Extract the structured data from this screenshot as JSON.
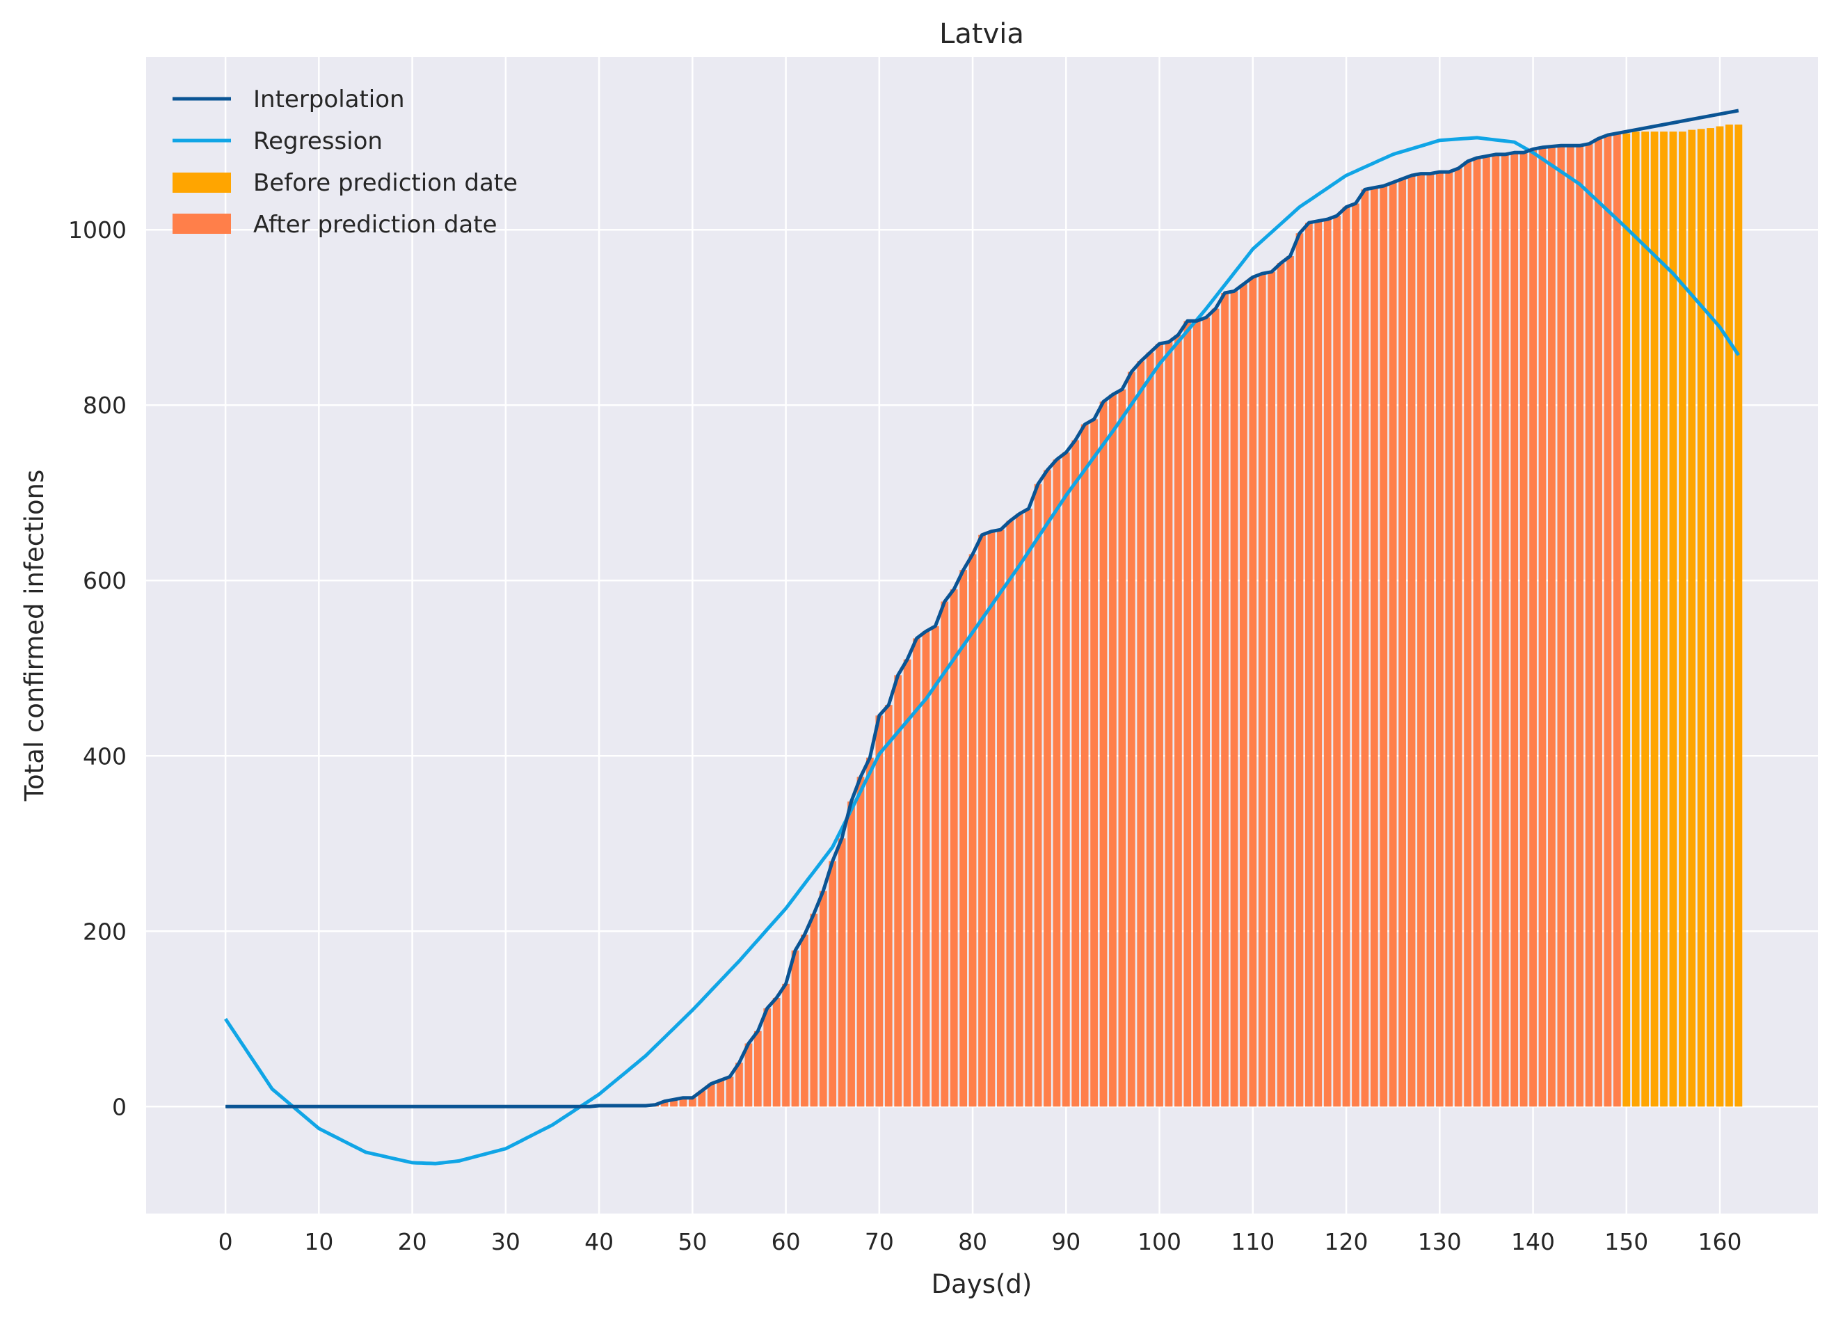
{
  "chart_data": {
    "type": "bar",
    "title": "Latvia",
    "xlabel": "Days(d)",
    "ylabel": "Total confirmed infections",
    "xlim": [
      -8.5,
      170.5
    ],
    "ylim": [
      -122,
      1197
    ],
    "xticks": [
      0,
      10,
      20,
      30,
      40,
      50,
      60,
      70,
      80,
      90,
      100,
      110,
      120,
      130,
      140,
      150,
      160
    ],
    "yticks": [
      0,
      200,
      400,
      600,
      800,
      1000
    ],
    "grid": true,
    "legend_position": "top-left",
    "colors": {
      "background": "#eaeaf2",
      "grid": "#ffffff",
      "interpolation": "#0a5494",
      "regression": "#10a5e6",
      "bar_before": "#ffa500",
      "bar_after": "#ff7f4a"
    },
    "prediction_day": 150,
    "series": [
      {
        "name": "Interpolation",
        "kind": "line",
        "points": [
          [
            0,
            0
          ],
          [
            5,
            0
          ],
          [
            10,
            0
          ],
          [
            20,
            0
          ],
          [
            30,
            0
          ],
          [
            39,
            0
          ],
          [
            40,
            1
          ],
          [
            45,
            1
          ],
          [
            46,
            2
          ],
          [
            47,
            6
          ],
          [
            48,
            8
          ],
          [
            49,
            10
          ],
          [
            50,
            10
          ],
          [
            51,
            18
          ],
          [
            52,
            26
          ],
          [
            53,
            30
          ],
          [
            54,
            34
          ],
          [
            55,
            50
          ],
          [
            56,
            72
          ],
          [
            57,
            86
          ],
          [
            58,
            112
          ],
          [
            59,
            124
          ],
          [
            60,
            140
          ],
          [
            61,
            178
          ],
          [
            62,
            196
          ],
          [
            63,
            220
          ],
          [
            64,
            246
          ],
          [
            65,
            280
          ],
          [
            66,
            306
          ],
          [
            67,
            348
          ],
          [
            68,
            376
          ],
          [
            69,
            398
          ],
          [
            70,
            446
          ],
          [
            71,
            458
          ],
          [
            72,
            492
          ],
          [
            73,
            510
          ],
          [
            74,
            534
          ],
          [
            75,
            542
          ],
          [
            76,
            548
          ],
          [
            77,
            576
          ],
          [
            78,
            590
          ],
          [
            79,
            612
          ],
          [
            80,
            630
          ],
          [
            81,
            652
          ],
          [
            82,
            656
          ],
          [
            83,
            658
          ],
          [
            84,
            668
          ],
          [
            85,
            676
          ],
          [
            86,
            682
          ],
          [
            87,
            710
          ],
          [
            88,
            726
          ],
          [
            89,
            738
          ],
          [
            90,
            746
          ],
          [
            91,
            760
          ],
          [
            92,
            778
          ],
          [
            93,
            784
          ],
          [
            94,
            804
          ],
          [
            95,
            812
          ],
          [
            96,
            818
          ],
          [
            97,
            838
          ],
          [
            98,
            850
          ],
          [
            99,
            860
          ],
          [
            100,
            870
          ],
          [
            101,
            872
          ],
          [
            102,
            880
          ],
          [
            103,
            896
          ],
          [
            104,
            896
          ],
          [
            105,
            900
          ],
          [
            106,
            910
          ],
          [
            107,
            928
          ],
          [
            108,
            930
          ],
          [
            109,
            938
          ],
          [
            110,
            946
          ],
          [
            111,
            950
          ],
          [
            112,
            952
          ],
          [
            113,
            962
          ],
          [
            114,
            970
          ],
          [
            115,
            996
          ],
          [
            116,
            1008
          ],
          [
            117,
            1010
          ],
          [
            118,
            1012
          ],
          [
            119,
            1016
          ],
          [
            120,
            1026
          ],
          [
            121,
            1030
          ],
          [
            122,
            1046
          ],
          [
            123,
            1048
          ],
          [
            124,
            1050
          ],
          [
            125,
            1054
          ],
          [
            126,
            1058
          ],
          [
            127,
            1062
          ],
          [
            128,
            1064
          ],
          [
            129,
            1064
          ],
          [
            130,
            1066
          ],
          [
            131,
            1066
          ],
          [
            132,
            1070
          ],
          [
            133,
            1078
          ],
          [
            134,
            1082
          ],
          [
            135,
            1084
          ],
          [
            136,
            1086
          ],
          [
            137,
            1086
          ],
          [
            138,
            1088
          ],
          [
            139,
            1088
          ],
          [
            140,
            1092
          ],
          [
            141,
            1094
          ],
          [
            142,
            1095
          ],
          [
            143,
            1096
          ],
          [
            144,
            1096
          ],
          [
            145,
            1096
          ],
          [
            146,
            1098
          ],
          [
            147,
            1104
          ],
          [
            148,
            1108
          ],
          [
            149,
            1110
          ],
          [
            150,
            1112
          ],
          [
            155,
            1122
          ],
          [
            160,
            1132
          ],
          [
            162,
            1136
          ]
        ]
      },
      {
        "name": "Regression",
        "kind": "line",
        "points": [
          [
            0,
            100
          ],
          [
            5,
            20
          ],
          [
            10,
            -25
          ],
          [
            15,
            -52
          ],
          [
            20,
            -64
          ],
          [
            22.5,
            -65
          ],
          [
            25,
            -62
          ],
          [
            30,
            -48
          ],
          [
            35,
            -21
          ],
          [
            40,
            14
          ],
          [
            45,
            58
          ],
          [
            50,
            110
          ],
          [
            55,
            166
          ],
          [
            60,
            226
          ],
          [
            65,
            296
          ],
          [
            70,
            402
          ],
          [
            75,
            465
          ],
          [
            80,
            541
          ],
          [
            85,
            617
          ],
          [
            90,
            697
          ],
          [
            95,
            770
          ],
          [
            100,
            847
          ],
          [
            105,
            910
          ],
          [
            110,
            978
          ],
          [
            115,
            1026
          ],
          [
            120,
            1062
          ],
          [
            125,
            1086
          ],
          [
            130,
            1102
          ],
          [
            134,
            1105
          ],
          [
            138,
            1100
          ],
          [
            140,
            1088
          ],
          [
            145,
            1052
          ],
          [
            150,
            1002
          ],
          [
            155,
            950
          ],
          [
            160,
            889
          ],
          [
            162,
            857
          ]
        ]
      },
      {
        "name": "Before prediction date",
        "kind": "bar",
        "x": [
          150,
          151,
          152,
          153,
          154,
          155,
          156,
          157,
          158,
          159,
          160,
          161,
          162
        ],
        "values": [
          1110,
          1112,
          1112,
          1112,
          1112,
          1112,
          1112,
          1114,
          1115,
          1116,
          1118,
          1120,
          1120
        ]
      },
      {
        "name": "After prediction date",
        "kind": "bar",
        "x_range": [
          0,
          149
        ],
        "source": "Interpolation"
      }
    ]
  }
}
